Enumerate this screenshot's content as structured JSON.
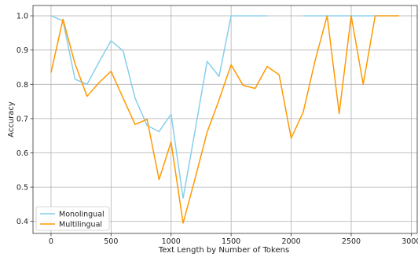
{
  "chart_data": {
    "type": "line",
    "title": "",
    "xlabel": "Text Length by Number of Tokens",
    "ylabel": "Accuracy",
    "xlim": [
      -150,
      3050
    ],
    "ylim": [
      0.365,
      1.03
    ],
    "xticks": [
      0,
      500,
      1000,
      1500,
      2000,
      2500,
      3000
    ],
    "yticks": [
      0.4,
      0.5,
      0.6,
      0.7,
      0.8,
      0.9,
      1.0
    ],
    "xtick_labels": [
      "0",
      "500",
      "1000",
      "1500",
      "2000",
      "2500",
      "3000"
    ],
    "ytick_labels": [
      "0.4",
      "0.5",
      "0.6",
      "0.7",
      "0.8",
      "0.9",
      "1.0"
    ],
    "grid": true,
    "legend_position": "lower-left",
    "series": [
      {
        "name": "Monolingual",
        "color": "#87ceeb",
        "points": [
          [
            0,
            1.0
          ],
          [
            100,
            0.985
          ],
          [
            200,
            0.815
          ],
          [
            300,
            0.8
          ],
          [
            400,
            0.865
          ],
          [
            500,
            0.927
          ],
          [
            600,
            0.898
          ],
          [
            700,
            0.76
          ],
          [
            800,
            0.68
          ],
          [
            900,
            0.662
          ],
          [
            1000,
            0.713
          ],
          [
            1100,
            0.468
          ],
          [
            1200,
            0.665
          ],
          [
            1300,
            0.867
          ],
          [
            1400,
            0.823
          ],
          [
            1500,
            1.0
          ],
          [
            1600,
            1.0
          ],
          [
            1700,
            1.0
          ],
          [
            1800,
            1.0
          ],
          [
            null,
            null
          ],
          [
            2100,
            1.0
          ],
          [
            2200,
            1.0
          ],
          [
            2300,
            1.0
          ],
          [
            2400,
            1.0
          ],
          [
            2500,
            1.0
          ],
          [
            2600,
            1.0
          ],
          [
            2700,
            1.0
          ],
          [
            2800,
            1.0
          ],
          [
            2900,
            1.0
          ]
        ]
      },
      {
        "name": "Multilingual",
        "color": "#ff9900",
        "points": [
          [
            0,
            0.834
          ],
          [
            100,
            0.99
          ],
          [
            200,
            0.86
          ],
          [
            300,
            0.765
          ],
          [
            400,
            0.805
          ],
          [
            500,
            0.838
          ],
          [
            600,
            0.76
          ],
          [
            700,
            0.683
          ],
          [
            800,
            0.698
          ],
          [
            900,
            0.522
          ],
          [
            1000,
            0.632
          ],
          [
            1100,
            0.395
          ],
          [
            1200,
            0.525
          ],
          [
            1300,
            0.66
          ],
          [
            1400,
            0.755
          ],
          [
            1500,
            0.857
          ],
          [
            1600,
            0.797
          ],
          [
            1700,
            0.788
          ],
          [
            1800,
            0.852
          ],
          [
            1900,
            0.828
          ],
          [
            2000,
            0.643
          ],
          [
            2100,
            0.718
          ],
          [
            2200,
            0.87
          ],
          [
            2300,
            1.0
          ],
          [
            2400,
            0.715
          ],
          [
            2500,
            1.0
          ],
          [
            2600,
            0.8
          ],
          [
            2700,
            1.0
          ],
          [
            2800,
            1.0
          ],
          [
            2900,
            1.0
          ]
        ]
      }
    ]
  }
}
